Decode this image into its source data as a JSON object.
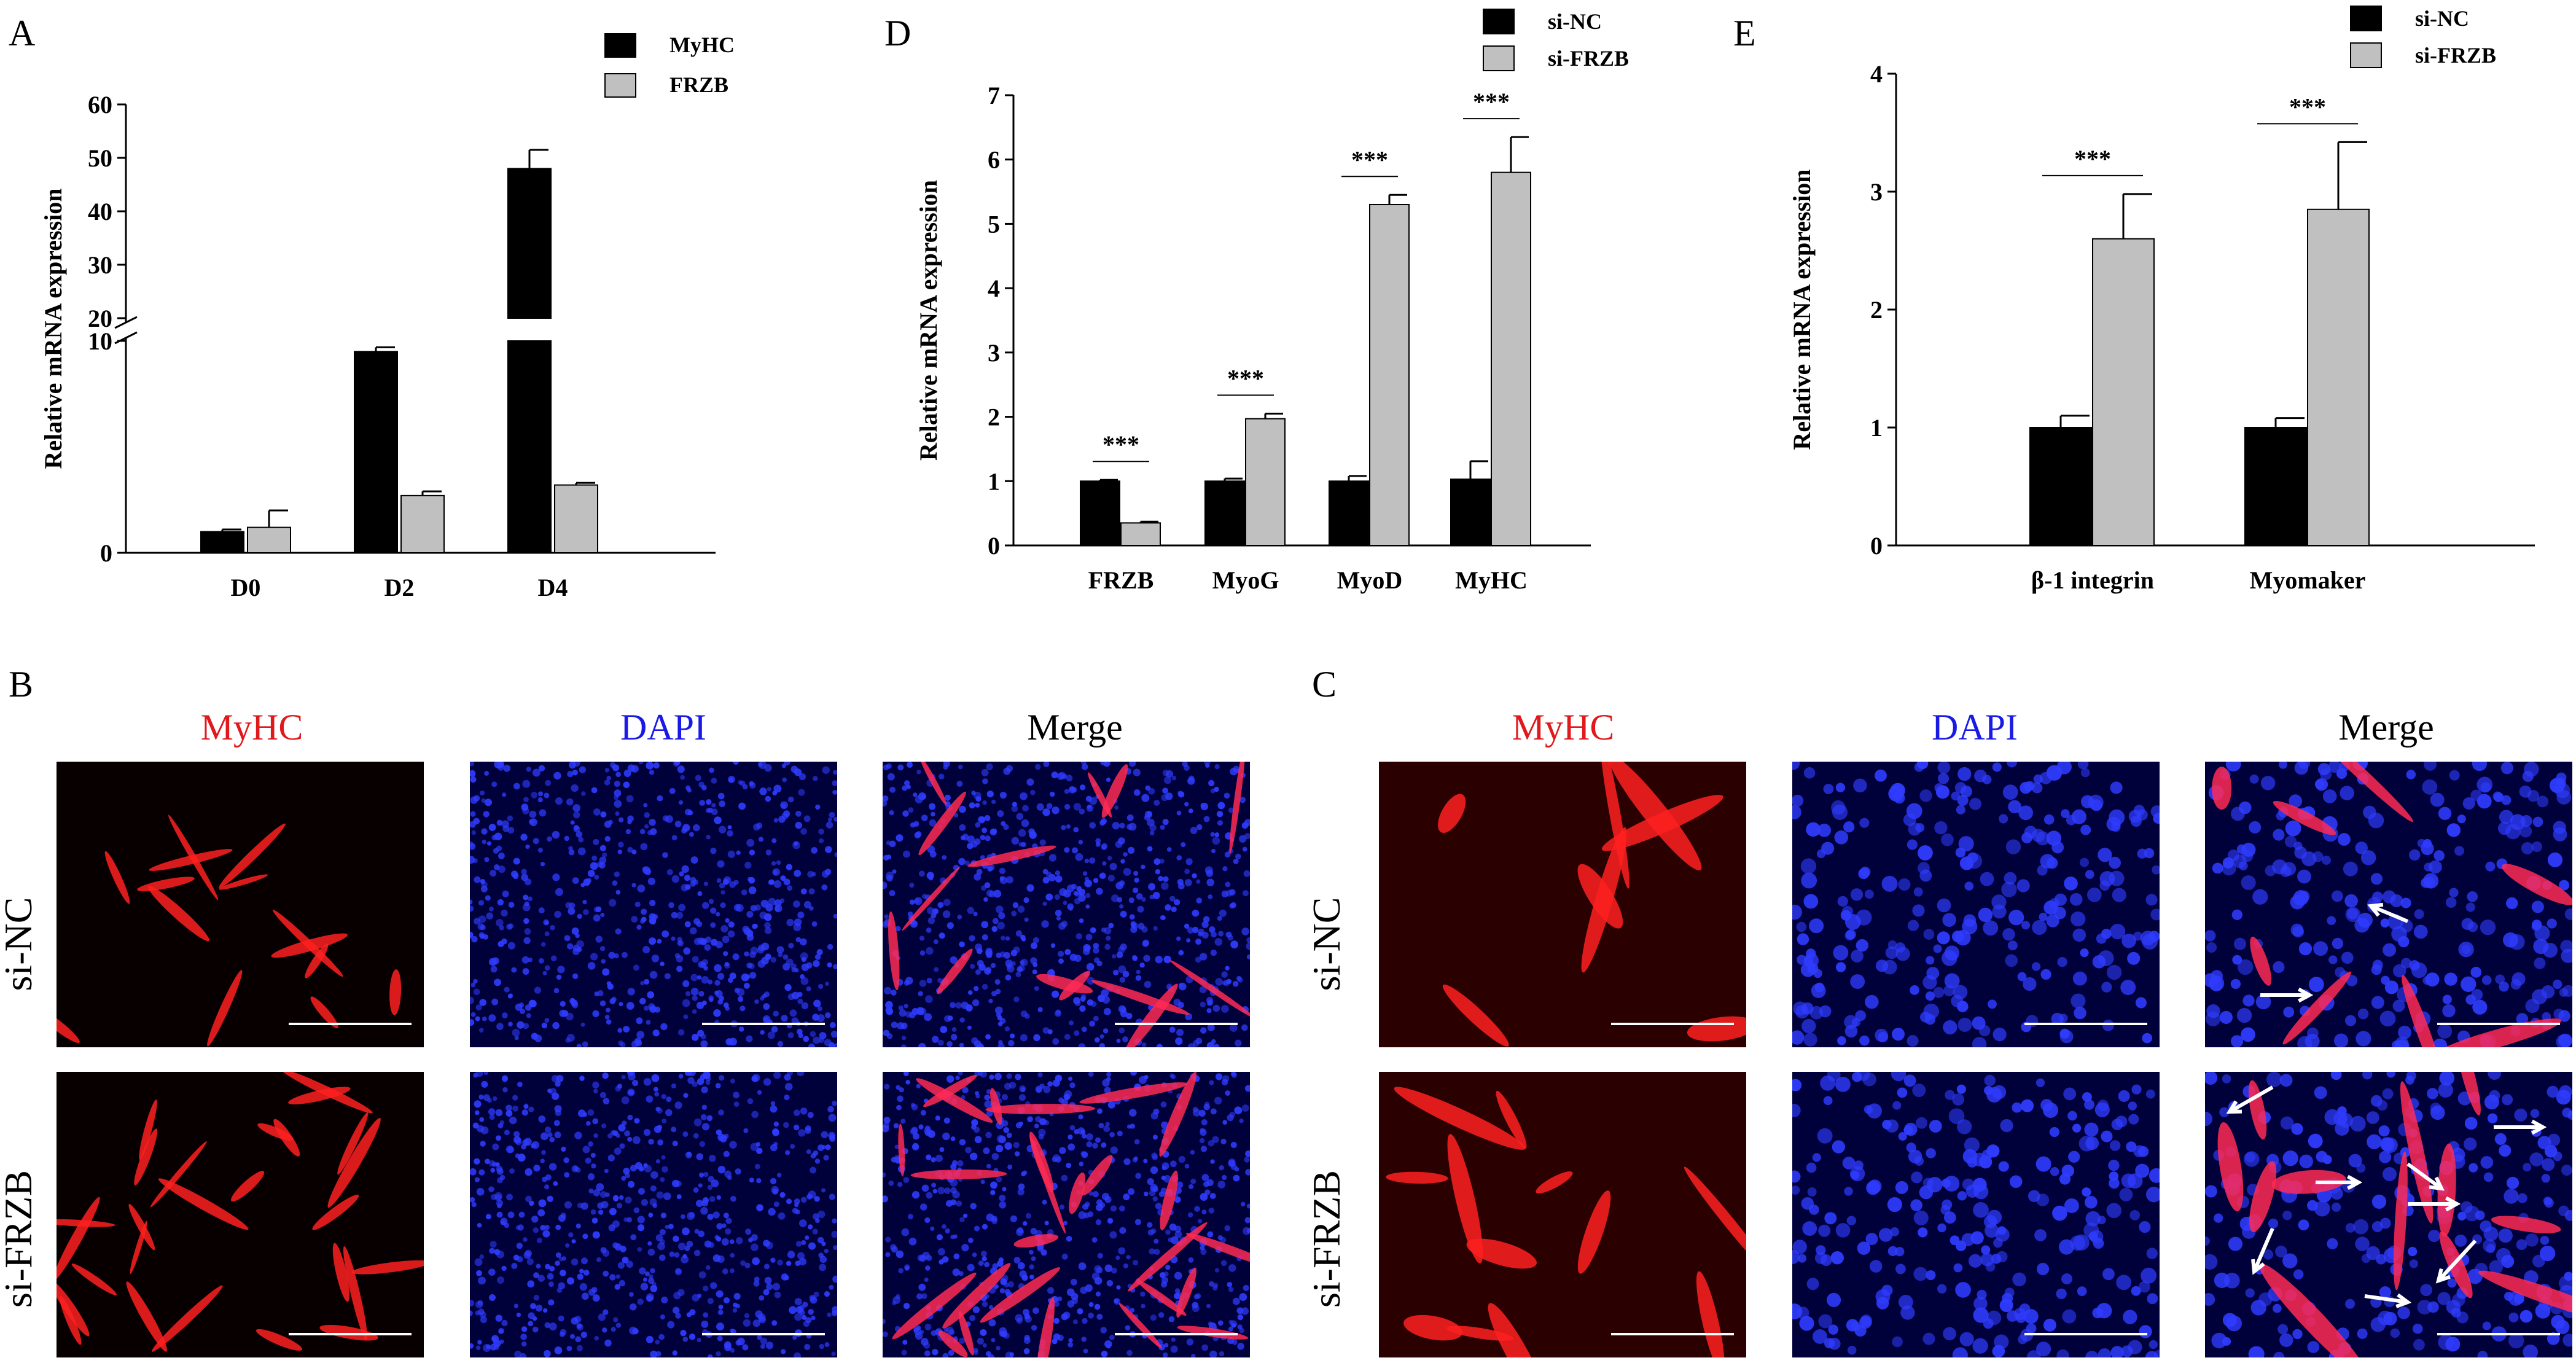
{
  "panels": {
    "A": "A",
    "B": "B",
    "C": "C",
    "D": "D",
    "E": "E"
  },
  "colors": {
    "black_bar": "#000000",
    "gray_bar": "#c0c0c0",
    "myhc_red": "#e0191c",
    "dapi_blue": "#1a1ae6"
  },
  "chart_data": [
    {
      "id": "A",
      "type": "bar",
      "ylabel": "Relative mRNA expression",
      "categories": [
        "D0",
        "D2",
        "D4"
      ],
      "broken_axis": true,
      "lower_range": [
        0,
        10
      ],
      "upper_range": [
        20,
        60
      ],
      "lower_ticks": [
        "0",
        "10"
      ],
      "upper_ticks": [
        "20",
        "30",
        "40",
        "50",
        "60"
      ],
      "series": [
        {
          "name": "MyHC",
          "color": "#000000",
          "values": [
            1,
            9.5,
            48
          ],
          "errors": [
            0.1,
            0.2,
            3.5
          ]
        },
        {
          "name": "FRZB",
          "color": "#c0c0c0",
          "values": [
            1.2,
            2.7,
            3.2
          ],
          "errors": [
            0.8,
            0.2,
            0.1
          ]
        }
      ]
    },
    {
      "id": "D",
      "type": "bar",
      "ylabel": "Relative mRNA expression",
      "categories": [
        "FRZB",
        "MyoG",
        "MyoD",
        "MyHC"
      ],
      "ylim": [
        0,
        7
      ],
      "yticks": [
        "0",
        "1",
        "2",
        "3",
        "4",
        "5",
        "6",
        "7"
      ],
      "significance": [
        "***",
        "***",
        "***",
        "***"
      ],
      "series": [
        {
          "name": "si-NC",
          "color": "#000000",
          "values": [
            1,
            1,
            1,
            1.03
          ],
          "errors": [
            0.02,
            0.04,
            0.08,
            0.28
          ]
        },
        {
          "name": "si-FRZB",
          "color": "#c0c0c0",
          "values": [
            0.35,
            1.97,
            5.3,
            5.8
          ],
          "errors": [
            0.02,
            0.08,
            0.15,
            0.55
          ]
        }
      ]
    },
    {
      "id": "E",
      "type": "bar",
      "ylabel": "Relative mRNA expression",
      "categories": [
        "β-1 integrin",
        "Myomaker"
      ],
      "ylim": [
        0,
        4
      ],
      "yticks": [
        "0",
        "1",
        "2",
        "3",
        "4"
      ],
      "significance": [
        "***",
        "***"
      ],
      "series": [
        {
          "name": "si-NC",
          "color": "#000000",
          "values": [
            1,
            1
          ],
          "errors": [
            0.1,
            0.08
          ]
        },
        {
          "name": "si-FRZB",
          "color": "#c0c0c0",
          "values": [
            2.6,
            2.85
          ],
          "errors": [
            0.38,
            0.57
          ]
        }
      ]
    }
  ],
  "micrographs": {
    "B": {
      "columns": [
        "MyHC",
        "DAPI",
        "Merge"
      ],
      "rows": [
        "si-NC",
        "si-FRZB"
      ]
    },
    "C": {
      "columns": [
        "MyHC",
        "DAPI",
        "Merge"
      ],
      "rows": [
        "si-NC",
        "si-FRZB"
      ]
    }
  }
}
